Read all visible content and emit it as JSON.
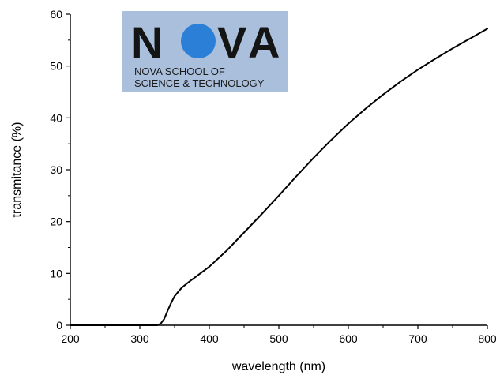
{
  "chart_data": {
    "type": "line",
    "xlabel": "wavelength (nm)",
    "ylabel": "transmitance (%)",
    "xlim": [
      200,
      800
    ],
    "ylim": [
      0,
      60
    ],
    "xticks": [
      200,
      300,
      400,
      500,
      600,
      700,
      800
    ],
    "yticks": [
      0,
      10,
      20,
      30,
      40,
      50,
      60
    ],
    "grid": false,
    "series": [
      {
        "color": "#000000",
        "x": [
          200,
          250,
          300,
          325,
          330,
          335,
          340,
          345,
          350,
          360,
          370,
          380,
          400,
          425,
          450,
          475,
          500,
          525,
          550,
          575,
          600,
          625,
          650,
          675,
          700,
          725,
          750,
          775,
          800
        ],
        "y": [
          0,
          0,
          0,
          0,
          0.3,
          1.2,
          2.8,
          4.3,
          5.6,
          7.2,
          8.3,
          9.3,
          11.3,
          14.4,
          17.9,
          21.4,
          25.0,
          28.7,
          32.3,
          35.7,
          38.9,
          41.8,
          44.5,
          47.0,
          49.3,
          51.4,
          53.4,
          55.3,
          57.2
        ]
      }
    ]
  },
  "logo": {
    "letters": [
      "N",
      "V",
      "A"
    ],
    "line1": "NOVA SCHOOL OF",
    "line2": "SCIENCE & TECHNOLOGY",
    "colors": {
      "background": "#a9bfdc",
      "circle": "#2b7fd6",
      "text": "#141414"
    }
  }
}
